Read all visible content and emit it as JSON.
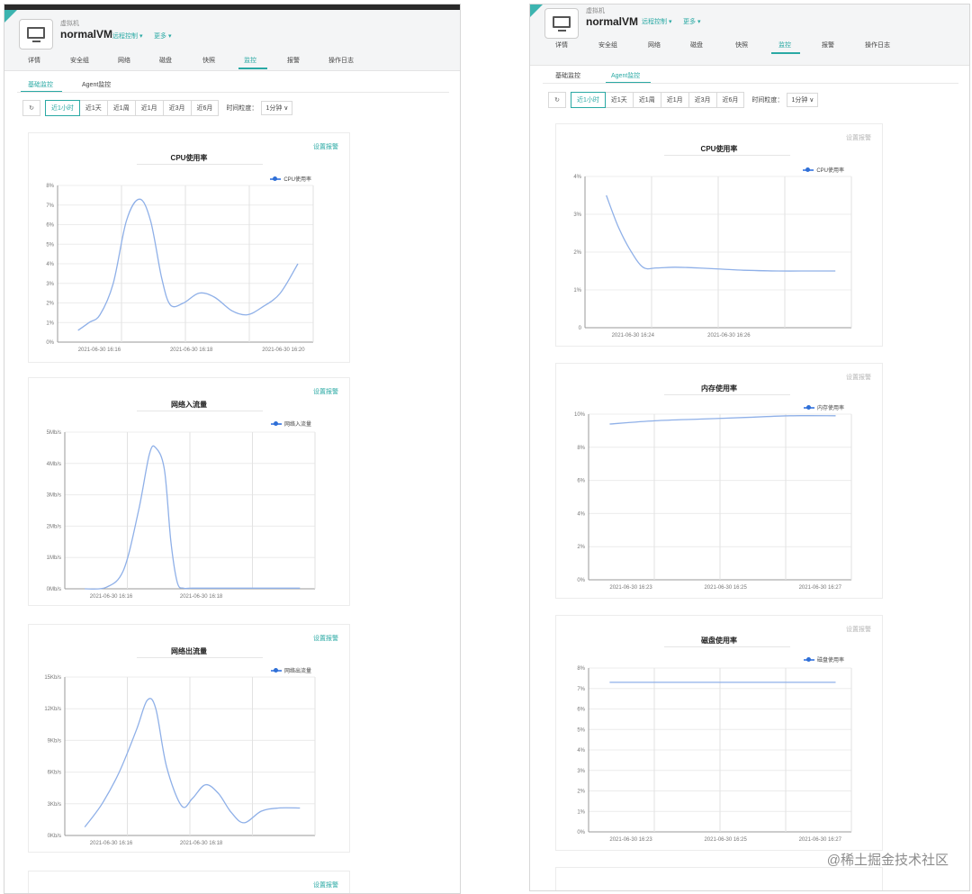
{
  "colors": {
    "accent": "#2aa9a4",
    "series": "#8fb0e8",
    "series_point": "#2f6fd6"
  },
  "left": {
    "vm_type": "虚拟机",
    "vm_name": "normalVM",
    "remote_control": "远程控制 ▾",
    "more": "更多 ▾",
    "tabs": [
      "详情",
      "安全组",
      "网络",
      "磁盘",
      "快照",
      "监控",
      "报警",
      "操作日志"
    ],
    "active_tab": "监控",
    "sub_tabs": [
      "基础监控",
      "Agent监控"
    ],
    "toolbar": {
      "refresh_icon": "refresh-icon",
      "ranges": [
        "近1小时",
        "近1天",
        "近1周",
        "近1月",
        "近3月",
        "近6月"
      ],
      "granularity_label": "时间粒度：",
      "granularity_value": "1分钟 ∨"
    }
  },
  "right": {
    "vm_type": "虚拟机",
    "vm_name": "normalVM",
    "remote_control": "远程控制 ▾",
    "more": "更多 ▾",
    "tabs": [
      "详情",
      "安全组",
      "网络",
      "磁盘",
      "快照",
      "监控",
      "报警",
      "操作日志"
    ],
    "active_tab": "监控",
    "sub_tabs": [
      "基础监控",
      "Agent监控"
    ],
    "toolbar": {
      "refresh_icon": "refresh-icon",
      "ranges": [
        "近1小时",
        "近1天",
        "近1周",
        "近1月",
        "近3月",
        "近6月"
      ],
      "granularity_label": "时间粒度：",
      "granularity_value": "1分钟 ∨"
    }
  },
  "set_alarm": "设置报警",
  "watermark": "@稀土掘金技术社区",
  "chart_data": [
    {
      "type": "line",
      "title": "CPU使用率",
      "series": [
        {
          "name": "CPU使用率",
          "x": [
            0,
            0.05,
            0.1,
            0.16,
            0.22,
            0.28,
            0.33,
            0.38,
            0.42,
            0.48,
            0.55,
            0.62,
            0.7,
            0.77,
            0.84,
            0.92,
            1.0
          ],
          "values": [
            0.6,
            1.0,
            1.4,
            3.0,
            6.2,
            7.3,
            6.2,
            3.3,
            1.9,
            2.0,
            2.5,
            2.3,
            1.6,
            1.4,
            1.8,
            2.5,
            4.0
          ]
        }
      ],
      "yticks": [
        "0%",
        "1%",
        "2%",
        "3%",
        "4%",
        "5%",
        "6%",
        "7%",
        "8%"
      ],
      "ylim": [
        0,
        8
      ],
      "xticks": [
        "2021-06-30 16:16",
        "2021-06-30 16:18",
        "2021-06-30 16:20"
      ],
      "legend": "top-right",
      "grid": true
    },
    {
      "type": "line",
      "title": "网络入流量",
      "series": [
        {
          "name": "网络入流量",
          "x": [
            0,
            0.1,
            0.18,
            0.25,
            0.3,
            0.33,
            0.37,
            0.4,
            0.43,
            0.46,
            0.5,
            0.7,
            1.0
          ],
          "values": [
            0,
            0.05,
            0.6,
            2.5,
            4.3,
            4.5,
            3.8,
            1.5,
            0.2,
            0.02,
            0.02,
            0.02,
            0.02
          ]
        }
      ],
      "yticks": [
        "0Mb/s",
        "1Mb/s",
        "2Mb/s",
        "3Mb/s",
        "4Mb/s",
        "5Mb/s"
      ],
      "ylim": [
        0,
        5
      ],
      "xticks": [
        "2021-06-30 16:16",
        "2021-06-30 16:18"
      ],
      "legend": "top-right",
      "grid": true
    },
    {
      "type": "line",
      "title": "网络出流量",
      "series": [
        {
          "name": "网络出流量",
          "x": [
            0,
            0.08,
            0.16,
            0.24,
            0.29,
            0.33,
            0.38,
            0.45,
            0.5,
            0.56,
            0.62,
            0.68,
            0.74,
            0.82,
            0.9,
            1.0
          ],
          "values": [
            0.8,
            3.0,
            6.0,
            10.0,
            12.8,
            12.0,
            6.5,
            2.8,
            3.5,
            4.8,
            4.0,
            2.2,
            1.2,
            2.3,
            2.6,
            2.6
          ]
        }
      ],
      "yticks": [
        "0Kb/s",
        "3Kb/s",
        "6Kb/s",
        "9Kb/s",
        "12Kb/s",
        "15Kb/s"
      ],
      "ylim": [
        0,
        15
      ],
      "xticks": [
        "2021-06-30 16:16",
        "2021-06-30 16:18"
      ],
      "legend": "top-right",
      "grid": true
    },
    {
      "type": "line",
      "title": "CPU使用率",
      "series": [
        {
          "name": "CPU使用率",
          "x": [
            0,
            0.05,
            0.1,
            0.16,
            0.22,
            0.3,
            0.4,
            0.5,
            0.6,
            0.75,
            0.9,
            1.0
          ],
          "values": [
            3.5,
            2.7,
            2.1,
            1.6,
            1.58,
            1.6,
            1.58,
            1.55,
            1.52,
            1.5,
            1.5,
            1.5
          ]
        }
      ],
      "yticks": [
        "0",
        "1%",
        "2%",
        "3%",
        "4%"
      ],
      "ylim": [
        0,
        4
      ],
      "xticks": [
        "2021-06-30 16:24",
        "2021-06-30 16:26"
      ],
      "legend": "top-right",
      "grid": true
    },
    {
      "type": "line",
      "title": "内存使用率",
      "series": [
        {
          "name": "内存使用率",
          "x": [
            0,
            0.2,
            0.4,
            0.6,
            0.8,
            1.0
          ],
          "values": [
            9.4,
            9.6,
            9.7,
            9.8,
            9.9,
            9.9
          ]
        }
      ],
      "yticks": [
        "0%",
        "2%",
        "4%",
        "6%",
        "8%",
        "10%"
      ],
      "ylim": [
        0,
        10
      ],
      "xticks": [
        "2021-06-30 16:23",
        "2021-06-30 16:25",
        "2021-06-30 16:27"
      ],
      "legend": "top-right",
      "grid": true
    },
    {
      "type": "line",
      "title": "磁盘使用率",
      "series": [
        {
          "name": "磁盘使用率",
          "x": [
            0,
            0.25,
            0.5,
            0.75,
            1.0
          ],
          "values": [
            7.3,
            7.3,
            7.3,
            7.3,
            7.3
          ]
        }
      ],
      "yticks": [
        "0%",
        "1%",
        "2%",
        "3%",
        "4%",
        "5%",
        "6%",
        "7%",
        "8%"
      ],
      "ylim": [
        0,
        8
      ],
      "xticks": [
        "2021-06-30 16:23",
        "2021-06-30 16:25",
        "2021-06-30 16:27"
      ],
      "legend": "top-right",
      "grid": true
    }
  ]
}
